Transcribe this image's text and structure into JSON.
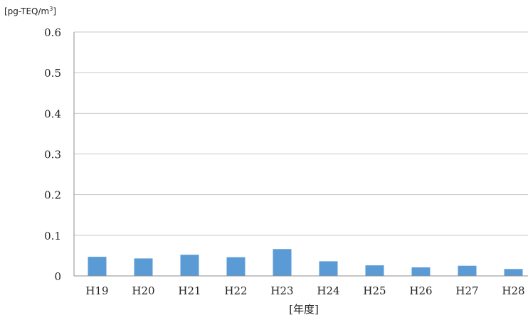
{
  "chart_data": {
    "type": "bar",
    "unit_label": {
      "text": "[pg-TEQ/m",
      "superscript": "3",
      "closing": "]"
    },
    "xlabel": "[年度]",
    "ylabel": "",
    "categories": [
      "H19",
      "H20",
      "H21",
      "H22",
      "H23",
      "H24",
      "H25",
      "H26",
      "H27",
      "H28"
    ],
    "values": [
      0.047,
      0.043,
      0.052,
      0.046,
      0.066,
      0.036,
      0.026,
      0.021,
      0.025,
      0.017
    ],
    "ylim": [
      0,
      0.6
    ],
    "yticks": [
      {
        "value": 0,
        "label": "0"
      },
      {
        "value": 0.1,
        "label": "0.1"
      },
      {
        "value": 0.2,
        "label": "0.2"
      },
      {
        "value": 0.3,
        "label": "0.3"
      },
      {
        "value": 0.4,
        "label": "0.4"
      },
      {
        "value": 0.5,
        "label": "0.5"
      },
      {
        "value": 0.6,
        "label": "0.6"
      }
    ],
    "grid": true,
    "legend": "none",
    "colors": {
      "bar": "#5b9bd5",
      "grid": "#c8c8c8",
      "axis": "#8c8c8c",
      "text": "#222222"
    }
  }
}
